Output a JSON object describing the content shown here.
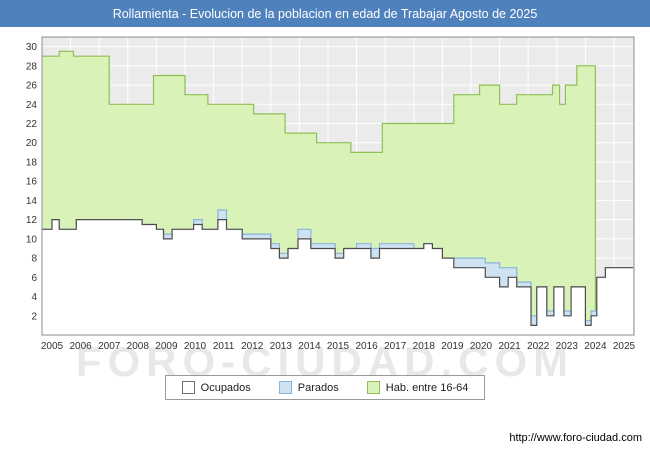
{
  "title_bar": {
    "text": "Rollamienta - Evolucion de la poblacion en edad de Trabajar Agosto de 2025"
  },
  "watermark": "FORO-CIUDAD.COM",
  "footer": {
    "url": "http://www.foro-ciudad.com"
  },
  "colors": {
    "title_bar_bg": "#4f81bd",
    "title_bar_fg": "#ffffff",
    "axis_text": "#333333",
    "plot_border": "#8c8c8c"
  },
  "legend": [
    {
      "label": "Ocupados",
      "fill": "#ffffff",
      "stroke": "#707070"
    },
    {
      "label": "Parados",
      "fill": "#cfe2f2",
      "stroke": "#8ab4d8"
    },
    {
      "label": "Hab. entre 16-64",
      "fill": "#d9f2b8",
      "stroke": "#8fbf55"
    }
  ],
  "chart_data": {
    "type": "area",
    "title": "Rollamienta - Evolucion de la poblacion en edad de Trabajar Agosto de 2025",
    "xlabel": "",
    "ylabel": "",
    "x_range": [
      2005,
      2025.7
    ],
    "ylim": [
      0,
      31
    ],
    "x_ticks": [
      2005,
      2006,
      2007,
      2008,
      2009,
      2010,
      2011,
      2012,
      2013,
      2014,
      2015,
      2016,
      2017,
      2018,
      2019,
      2020,
      2021,
      2022,
      2023,
      2024,
      2025
    ],
    "y_ticks": [
      2,
      4,
      6,
      8,
      10,
      12,
      14,
      16,
      18,
      20,
      22,
      24,
      26,
      28,
      30
    ],
    "plot_bg": "#ebebeb",
    "grid_color": "#ffffff",
    "legend_position": "bottom",
    "series": [
      {
        "name": "Hab. entre 16-64",
        "fill": "#d9f2b8",
        "stroke": "#8fbf55",
        "points": [
          [
            2005,
            29
          ],
          [
            2005.6,
            29.5
          ],
          [
            2006.1,
            29
          ],
          [
            2007.35,
            24
          ],
          [
            2008.9,
            27
          ],
          [
            2010.0,
            25
          ],
          [
            2010.8,
            24
          ],
          [
            2012.4,
            23
          ],
          [
            2013.5,
            21
          ],
          [
            2014.6,
            20
          ],
          [
            2015.8,
            19
          ],
          [
            2016.9,
            22
          ],
          [
            2019.4,
            25
          ],
          [
            2020.3,
            26
          ],
          [
            2021.0,
            24
          ],
          [
            2021.6,
            25
          ],
          [
            2022.85,
            26
          ],
          [
            2023.1,
            24
          ],
          [
            2023.3,
            26
          ],
          [
            2023.7,
            28
          ],
          [
            2024.35,
            0
          ]
        ]
      },
      {
        "name": "Parados",
        "fill": "#cfe2f2",
        "stroke": "#8ab4d8",
        "points": [
          [
            2005,
            11
          ],
          [
            2005.35,
            12
          ],
          [
            2005.6,
            11
          ],
          [
            2006.2,
            12
          ],
          [
            2008.5,
            11.5
          ],
          [
            2009.0,
            11
          ],
          [
            2009.25,
            10.5
          ],
          [
            2009.55,
            11
          ],
          [
            2010.3,
            12
          ],
          [
            2010.6,
            11
          ],
          [
            2011.15,
            13
          ],
          [
            2011.45,
            11
          ],
          [
            2012.0,
            10.5
          ],
          [
            2013.0,
            9.5
          ],
          [
            2013.3,
            8.5
          ],
          [
            2013.6,
            9
          ],
          [
            2013.95,
            11
          ],
          [
            2014.4,
            9.5
          ],
          [
            2015.25,
            8.5
          ],
          [
            2015.55,
            9
          ],
          [
            2016.0,
            9.5
          ],
          [
            2016.5,
            9
          ],
          [
            2016.8,
            9.5
          ],
          [
            2017.5,
            9.5
          ],
          [
            2018.0,
            9
          ],
          [
            2018.35,
            9.5
          ],
          [
            2018.65,
            9
          ],
          [
            2019.0,
            8
          ],
          [
            2019.4,
            8
          ],
          [
            2020.5,
            7.5
          ],
          [
            2021.0,
            7
          ],
          [
            2021.6,
            5.5
          ],
          [
            2022.1,
            2
          ],
          [
            2022.3,
            5
          ],
          [
            2022.65,
            2.5
          ],
          [
            2022.9,
            5
          ],
          [
            2023.25,
            2.5
          ],
          [
            2023.5,
            5
          ],
          [
            2024.0,
            1.5
          ],
          [
            2024.2,
            2.5
          ],
          [
            2024.4,
            6
          ],
          [
            2024.7,
            7
          ],
          [
            2025.67,
            7
          ]
        ]
      },
      {
        "name": "Ocupados",
        "fill": "#ffffff",
        "stroke": "#4d4d4d",
        "points": [
          [
            2005,
            11
          ],
          [
            2005.35,
            12
          ],
          [
            2005.6,
            11
          ],
          [
            2006.2,
            12
          ],
          [
            2008.5,
            11.5
          ],
          [
            2009.0,
            11
          ],
          [
            2009.25,
            10
          ],
          [
            2009.55,
            11
          ],
          [
            2010.3,
            11.5
          ],
          [
            2010.6,
            11
          ],
          [
            2011.15,
            12
          ],
          [
            2011.45,
            11
          ],
          [
            2012.0,
            10
          ],
          [
            2013.0,
            9
          ],
          [
            2013.3,
            8
          ],
          [
            2013.6,
            9
          ],
          [
            2013.95,
            10
          ],
          [
            2014.4,
            9
          ],
          [
            2015.25,
            8
          ],
          [
            2015.55,
            9
          ],
          [
            2016.5,
            8
          ],
          [
            2016.8,
            9
          ],
          [
            2018.35,
            9.5
          ],
          [
            2018.65,
            9
          ],
          [
            2019.0,
            8
          ],
          [
            2019.4,
            7
          ],
          [
            2020.5,
            6
          ],
          [
            2021.0,
            5
          ],
          [
            2021.3,
            6
          ],
          [
            2021.6,
            5
          ],
          [
            2022.1,
            1
          ],
          [
            2022.3,
            5
          ],
          [
            2022.65,
            2
          ],
          [
            2022.9,
            5
          ],
          [
            2023.25,
            2
          ],
          [
            2023.5,
            5
          ],
          [
            2024.0,
            1
          ],
          [
            2024.2,
            2
          ],
          [
            2024.4,
            6
          ],
          [
            2024.7,
            7
          ],
          [
            2025.67,
            7
          ]
        ]
      }
    ]
  }
}
